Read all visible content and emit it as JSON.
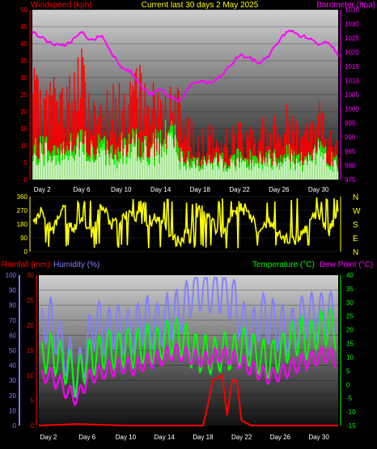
{
  "header": {
    "left_title": "Windspeed (kph)",
    "center_title": "Current last 30 days 2 May 2025",
    "right_title": "Barometer (hpa)"
  },
  "lower_header": {
    "rain_label": "Rainfall (mm)",
    "humidity_label": "Humidity (%)",
    "temp_label": "Temperature (°C)",
    "dew_label": "Dew Point (°C)"
  },
  "x_labels": [
    "Day 2",
    "Day 6",
    "Day 10",
    "Day 14",
    "Day 18",
    "Day 22",
    "Day 26",
    "Day 30"
  ],
  "compass_labels": [
    "N",
    "W",
    "S",
    "E",
    "N"
  ],
  "colors": {
    "wind_gust": "#ff0000",
    "wind_avg": "#00ff00",
    "wind_light": "#ccffcc",
    "barometer": "#ff00ff",
    "direction": "#ffff00",
    "rain": "#ff0000",
    "humidity": "#8080ff",
    "temperature": "#00ff00",
    "dew_point": "#ff00ff"
  },
  "chart_data": [
    {
      "type": "bar",
      "title": "Current last 30 days 2 May 2025",
      "xlabel": "",
      "ylabel": "Windspeed (kph)",
      "ylabel_right": "Barometer (hpa)",
      "ylim": [
        0,
        50
      ],
      "ylim_right": [
        975,
        1035
      ],
      "yticks": [
        0,
        5,
        10,
        15,
        20,
        25,
        30,
        35,
        40,
        45,
        50
      ],
      "yticks_right": [
        975,
        980,
        985,
        990,
        995,
        1000,
        1005,
        1010,
        1015,
        1020,
        1025,
        1030,
        1035
      ],
      "x_range_days": [
        1,
        32
      ],
      "series": [
        {
          "name": "Windspeed (kph)",
          "kind": "gust",
          "x": [
            1,
            2,
            3,
            4,
            5,
            6,
            7,
            8,
            9,
            10,
            11,
            12,
            13,
            14,
            15,
            16,
            17,
            18,
            19,
            20,
            21,
            22,
            23,
            24,
            25,
            26,
            27,
            28,
            29,
            30,
            31,
            32
          ],
          "values": [
            35,
            26,
            35,
            28,
            36,
            40,
            25,
            30,
            32,
            28,
            32,
            35,
            30,
            30,
            28,
            27,
            18,
            16,
            17,
            15,
            16,
            18,
            17,
            20,
            17,
            22,
            23,
            20,
            22,
            25,
            18,
            17
          ]
        },
        {
          "kind": "average",
          "x": [
            1,
            2,
            3,
            4,
            5,
            6,
            7,
            8,
            9,
            10,
            11,
            12,
            13,
            14,
            15,
            16,
            17,
            18,
            19,
            20,
            21,
            22,
            23,
            24,
            25,
            26,
            27,
            28,
            29,
            30,
            31,
            32
          ],
          "values": [
            12,
            15,
            13,
            14,
            16,
            17,
            12,
            14,
            13,
            14,
            15,
            16,
            13,
            18,
            20,
            12,
            8,
            9,
            8,
            9,
            8,
            10,
            9,
            10,
            9,
            11,
            12,
            10,
            11,
            13,
            9,
            8
          ]
        },
        {
          "name": "Barometer (hpa)",
          "x": [
            1,
            2,
            3,
            4,
            5,
            6,
            7,
            8,
            9,
            10,
            11,
            12,
            13,
            14,
            15,
            16,
            17,
            18,
            19,
            20,
            21,
            22,
            23,
            24,
            25,
            26,
            27,
            28,
            29,
            30,
            31,
            32
          ],
          "values": [
            1027,
            1025,
            1023,
            1022,
            1024,
            1027,
            1024,
            1026,
            1020,
            1015,
            1013,
            1008,
            1005,
            1007,
            1004,
            1003,
            1008,
            1010,
            1009,
            1011,
            1015,
            1019,
            1018,
            1016,
            1019,
            1024,
            1028,
            1026,
            1025,
            1023,
            1024,
            1019
          ]
        }
      ]
    },
    {
      "type": "line",
      "ylabel": "",
      "ylim": [
        0,
        360
      ],
      "yticks": [
        0,
        90,
        180,
        270,
        360
      ],
      "yticks_right_labels": [
        "N",
        "W",
        "S",
        "E",
        "N"
      ],
      "series": [
        {
          "kind": "direction",
          "x": [
            1,
            2,
            3,
            4,
            5,
            6,
            7,
            8,
            9,
            10,
            11,
            12,
            13,
            14,
            15,
            16,
            17,
            18,
            19,
            20,
            21,
            22,
            23,
            24,
            25,
            26,
            27,
            28,
            29,
            30,
            31,
            32
          ],
          "values": [
            180,
            270,
            120,
            300,
            150,
            200,
            90,
            310,
            180,
            220,
            250,
            220,
            200,
            240,
            80,
            60,
            170,
            290,
            210,
            120,
            190,
            300,
            250,
            130,
            200,
            100,
            70,
            90,
            180,
            260,
            120,
            280
          ]
        }
      ]
    },
    {
      "type": "line",
      "ylabel": "Rainfall (mm)",
      "ylabel2": "Humidity (%)",
      "ylabel_right": "Temperature (°C)",
      "ylabel_right2": "Dew Point (°C)",
      "ylim_humidity": [
        0,
        100
      ],
      "yticks_humidity": [
        0,
        10,
        20,
        30,
        40,
        50,
        60,
        70,
        80,
        90,
        100
      ],
      "ylim_rain": [
        0,
        30
      ],
      "yticks_rain": [
        0,
        5,
        10,
        15,
        20,
        25,
        30
      ],
      "ylim_temp": [
        -15,
        40
      ],
      "yticks_temp": [
        -15,
        -10,
        -5,
        0,
        5,
        10,
        15,
        20,
        25,
        30,
        35,
        40
      ],
      "series": [
        {
          "name": "Humidity (%)",
          "x": [
            1,
            2,
            3,
            4,
            5,
            6,
            7,
            8,
            9,
            10,
            11,
            12,
            13,
            14,
            15,
            16,
            17,
            18,
            19,
            20,
            21,
            22,
            23,
            24,
            25,
            26,
            27,
            28,
            29,
            30,
            31,
            32
          ],
          "values": [
            60,
            72,
            58,
            45,
            30,
            55,
            70,
            62,
            68,
            60,
            64,
            72,
            66,
            70,
            74,
            76,
            92,
            90,
            88,
            92,
            86,
            70,
            60,
            74,
            68,
            66,
            62,
            70,
            74,
            72,
            76,
            68
          ]
        },
        {
          "name": "Temperature (°C)",
          "x": [
            1,
            2,
            3,
            4,
            5,
            6,
            7,
            8,
            9,
            10,
            11,
            12,
            13,
            14,
            15,
            16,
            17,
            18,
            19,
            20,
            21,
            22,
            23,
            24,
            25,
            26,
            27,
            28,
            29,
            30,
            31,
            32
          ],
          "values": [
            8,
            12,
            10,
            6,
            2,
            9,
            11,
            13,
            12,
            14,
            13,
            15,
            14,
            16,
            18,
            17,
            12,
            11,
            10,
            12,
            11,
            14,
            13,
            10,
            9,
            12,
            15,
            18,
            16,
            20,
            22,
            18
          ]
        },
        {
          "name": "Dew Point (°C)",
          "x": [
            1,
            2,
            3,
            4,
            5,
            6,
            7,
            8,
            9,
            10,
            11,
            12,
            13,
            14,
            15,
            16,
            17,
            18,
            19,
            20,
            21,
            22,
            23,
            24,
            25,
            26,
            27,
            28,
            29,
            30,
            31,
            32
          ],
          "values": [
            2,
            4,
            1,
            -3,
            -5,
            2,
            4,
            5,
            6,
            7,
            6,
            8,
            9,
            10,
            12,
            11,
            10,
            9,
            10,
            11,
            10,
            8,
            6,
            4,
            3,
            4,
            6,
            8,
            9,
            10,
            11,
            8
          ]
        },
        {
          "name": "Rainfall (mm)",
          "x": [
            1,
            5,
            10,
            15,
            18,
            18.5,
            19,
            20,
            20.5,
            21,
            21.5,
            22,
            23,
            28,
            32
          ],
          "values": [
            0,
            0.3,
            0,
            0,
            0,
            4,
            9,
            10,
            2,
            9,
            9,
            1,
            0,
            0,
            0
          ]
        }
      ]
    }
  ]
}
